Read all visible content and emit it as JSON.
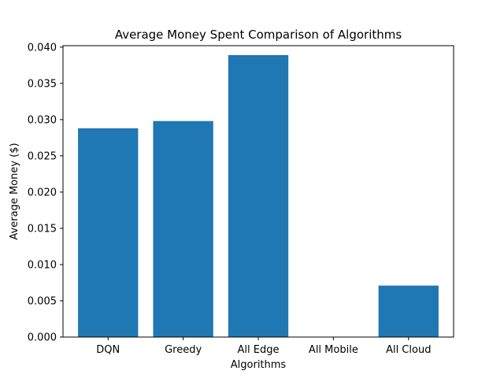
{
  "chart_data": {
    "type": "bar",
    "title": "Average Money Spent Comparison of Algorithms",
    "xlabel": "Algorithms",
    "ylabel": "Average Money ($)",
    "categories": [
      "DQN",
      "Greedy",
      "All Edge",
      "All Mobile",
      "All Cloud"
    ],
    "values": [
      0.0288,
      0.0298,
      0.0389,
      0.0,
      0.0071
    ],
    "ylim": [
      0,
      0.0402
    ],
    "yticks": [
      "0.000",
      "0.005",
      "0.010",
      "0.015",
      "0.020",
      "0.025",
      "0.030",
      "0.035",
      "0.040"
    ],
    "ytick_values": [
      0,
      0.005,
      0.01,
      0.015,
      0.02,
      0.025,
      0.03,
      0.035,
      0.04
    ],
    "bar_color": "#1f77b4",
    "grid": false,
    "legend": "none"
  }
}
